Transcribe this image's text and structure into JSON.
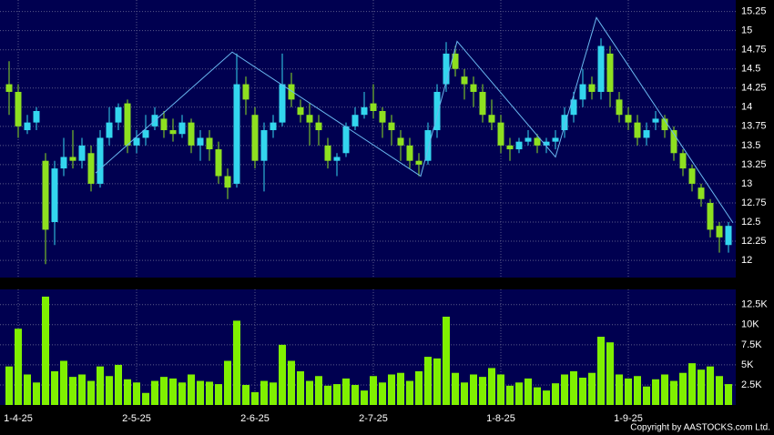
{
  "chart_data": {
    "type": "candlestick",
    "categories": [
      null,
      "1-4-25",
      null,
      null,
      null,
      null,
      null,
      null,
      null,
      null,
      null,
      null,
      null,
      null,
      "2-5-25",
      null,
      null,
      null,
      null,
      null,
      null,
      null,
      null,
      null,
      null,
      null,
      null,
      "2-6-25",
      null,
      null,
      null,
      null,
      null,
      null,
      null,
      null,
      null,
      null,
      null,
      null,
      "2-7-25",
      null,
      null,
      null,
      null,
      null,
      null,
      null,
      null,
      null,
      null,
      null,
      null,
      null,
      "1-8-25",
      null,
      null,
      null,
      null,
      null,
      null,
      null,
      null,
      null,
      null,
      null,
      null,
      null,
      "1-9-25",
      null,
      null,
      null,
      null,
      null,
      null,
      null,
      null,
      null,
      null,
      null
    ],
    "open": [
      14.3,
      14.2,
      13.7,
      13.8,
      13.3,
      12.5,
      13.2,
      13.35,
      13.3,
      13.4,
      13.0,
      13.6,
      13.8,
      14.05,
      13.5,
      13.6,
      13.75,
      13.85,
      13.7,
      13.65,
      13.8,
      13.5,
      13.6,
      13.45,
      13.1,
      13.0,
      14.3,
      13.9,
      13.3,
      13.7,
      13.8,
      14.3,
      14.0,
      13.9,
      13.8,
      13.5,
      13.3,
      13.4,
      13.75,
      13.9,
      14.05,
      13.95,
      13.8,
      13.6,
      13.5,
      13.3,
      13.3,
      13.7,
      14.3,
      14.7,
      14.4,
      14.3,
      14.2,
      13.9,
      13.8,
      13.5,
      13.45,
      13.55,
      13.6,
      13.5,
      13.55,
      13.7,
      13.9,
      14.1,
      14.3,
      14.2,
      14.7,
      14.1,
      13.9,
      13.8,
      13.6,
      13.8,
      13.85,
      13.7,
      13.4,
      13.2,
      12.95,
      12.75,
      12.45,
      12.2
    ],
    "high": [
      14.6,
      14.3,
      13.9,
      14.0,
      13.4,
      13.3,
      13.6,
      13.7,
      13.6,
      13.5,
      13.7,
      14.0,
      14.05,
      14.1,
      13.7,
      13.9,
      14.0,
      13.95,
      13.85,
      13.9,
      13.85,
      13.7,
      13.7,
      13.55,
      13.2,
      14.7,
      14.4,
      14.0,
      13.8,
      13.9,
      14.7,
      14.45,
      14.1,
      14.05,
      13.9,
      13.6,
      13.4,
      13.8,
      14.0,
      14.2,
      14.3,
      14.0,
      13.9,
      13.7,
      13.6,
      13.4,
      13.8,
      14.3,
      14.85,
      14.8,
      14.5,
      14.4,
      14.3,
      14.1,
      13.9,
      13.6,
      13.6,
      13.7,
      13.65,
      13.6,
      13.7,
      14.0,
      14.2,
      14.5,
      14.4,
      14.9,
      14.8,
      14.2,
      14.0,
      13.9,
      13.8,
      13.95,
      13.9,
      13.75,
      13.45,
      13.25,
      13.0,
      12.8,
      12.5,
      12.5
    ],
    "low": [
      13.9,
      13.6,
      13.65,
      13.7,
      11.95,
      12.2,
      13.1,
      13.2,
      13.2,
      12.9,
      12.95,
      13.5,
      13.7,
      13.4,
      13.4,
      13.5,
      13.7,
      13.6,
      13.55,
      13.6,
      13.4,
      13.3,
      13.3,
      13.0,
      12.8,
      12.95,
      13.9,
      13.2,
      12.9,
      13.6,
      13.75,
      14.0,
      13.8,
      13.5,
      13.5,
      13.2,
      13.1,
      13.35,
      13.7,
      13.85,
      13.85,
      13.6,
      13.5,
      13.3,
      13.2,
      13.1,
      13.25,
      13.6,
      14.2,
      14.4,
      14.1,
      14.0,
      13.8,
      13.7,
      13.4,
      13.3,
      13.4,
      13.5,
      13.4,
      13.4,
      13.45,
      13.6,
      13.8,
      14.0,
      14.1,
      14.1,
      14.0,
      13.8,
      13.7,
      13.5,
      13.5,
      13.7,
      13.6,
      13.3,
      13.1,
      12.9,
      12.7,
      12.3,
      12.1,
      12.1
    ],
    "close": [
      14.2,
      13.75,
      13.8,
      13.95,
      12.4,
      13.2,
      13.35,
      13.3,
      13.5,
      13.0,
      13.6,
      13.8,
      14.0,
      13.5,
      13.6,
      13.7,
      13.9,
      13.7,
      13.65,
      13.8,
      13.5,
      13.6,
      13.45,
      13.1,
      12.95,
      14.3,
      14.1,
      13.3,
      13.7,
      13.8,
      14.3,
      14.1,
      13.9,
      13.8,
      13.7,
      13.3,
      13.35,
      13.75,
      13.9,
      14.0,
      13.95,
      13.8,
      13.7,
      13.5,
      13.3,
      13.25,
      13.7,
      14.2,
      14.7,
      14.5,
      14.3,
      14.2,
      13.9,
      13.8,
      13.5,
      13.45,
      13.55,
      13.6,
      13.5,
      13.55,
      13.6,
      13.9,
      14.1,
      14.3,
      14.2,
      14.8,
      14.2,
      13.9,
      13.8,
      13.6,
      13.7,
      13.85,
      13.7,
      13.4,
      13.2,
      13.0,
      12.8,
      12.4,
      12.3,
      12.45
    ],
    "up_color": "#33d6ee",
    "down_color": "#8ee020",
    "volume": [
      4800,
      9500,
      3800,
      2800,
      13500,
      4200,
      5500,
      3500,
      3800,
      3000,
      4800,
      3600,
      5000,
      3200,
      2800,
      1500,
      3000,
      3500,
      3300,
      2800,
      3800,
      3000,
      2900,
      2600,
      5500,
      10500,
      2500,
      1600,
      3000,
      2800,
      7500,
      5500,
      4200,
      3000,
      3600,
      2400,
      2600,
      3300,
      2500,
      1800,
      3600,
      2800,
      3800,
      4000,
      3000,
      4200,
      6000,
      5800,
      11000,
      4000,
      2800,
      3800,
      3500,
      4600,
      3800,
      2400,
      2800,
      3300,
      2200,
      1800,
      2700,
      3800,
      4200,
      3400,
      4000,
      8500,
      7800,
      3800,
      3300,
      3600,
      2300,
      3200,
      3800,
      3000,
      4000,
      5200,
      4400,
      4800,
      3600,
      2600
    ],
    "volume_color": "#80f000",
    "ylim": [
      11.775,
      15.4
    ],
    "yticks": [
      12,
      12.25,
      12.5,
      12.75,
      13,
      13.25,
      13.5,
      13.75,
      14,
      14.25,
      14.5,
      14.75,
      15,
      15.25
    ],
    "volume_ylim": [
      0,
      14400
    ],
    "volume_ticks": [
      {
        "value": 2500,
        "label": "2.5K"
      },
      {
        "value": 5000,
        "label": "5K"
      },
      {
        "value": 7500,
        "label": "7.5K"
      },
      {
        "value": 10000,
        "label": "10K"
      },
      {
        "value": 12500,
        "label": "12.5K"
      }
    ],
    "zigzag": {
      "color": "#6ab8f0",
      "x": [
        9.5,
        24.5,
        45.2,
        49.2,
        60,
        64.5,
        79.5
      ],
      "values": [
        13.14,
        14.72,
        13.1,
        14.86,
        13.35,
        15.17,
        12.49
      ]
    },
    "grid": true,
    "copyright": "Copyright by AASTOCKS.com Ltd."
  }
}
